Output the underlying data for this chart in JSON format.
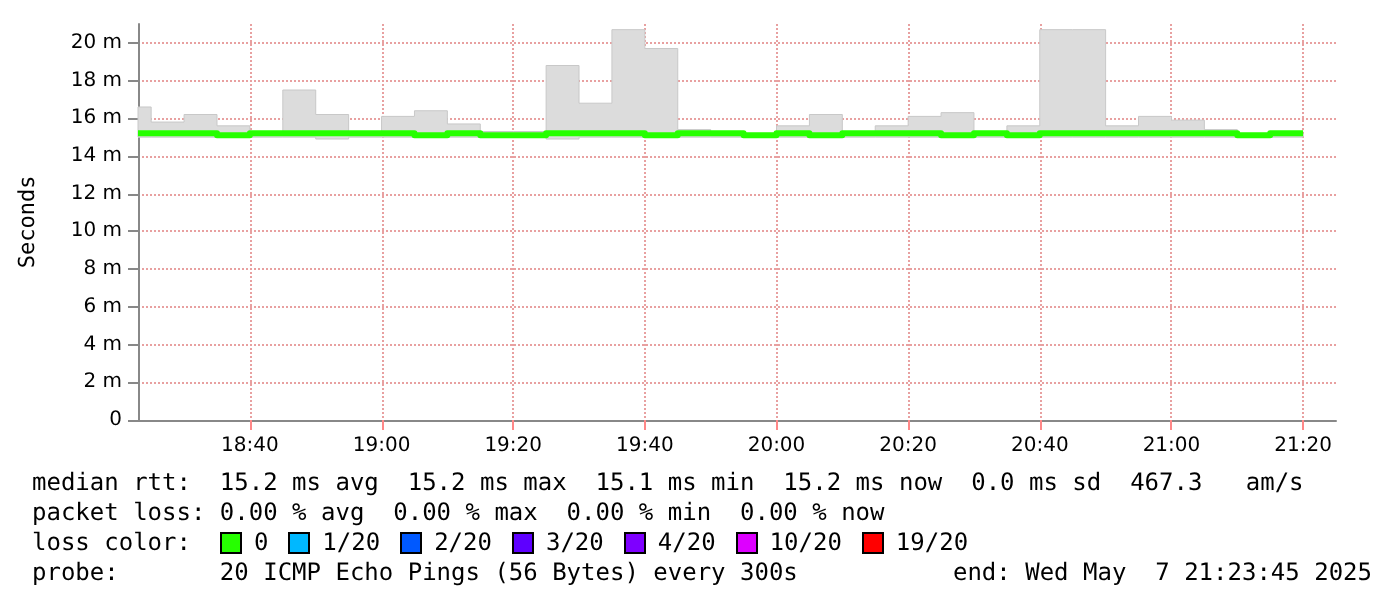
{
  "chart_data": {
    "type": "step",
    "ylabel": "Seconds",
    "x": [
      "2025-05-07T18:23",
      "2025-05-07T18:25",
      "2025-05-07T18:30",
      "2025-05-07T18:35",
      "2025-05-07T18:40",
      "2025-05-07T18:45",
      "2025-05-07T18:50",
      "2025-05-07T18:55",
      "2025-05-07T19:00",
      "2025-05-07T19:05",
      "2025-05-07T19:10",
      "2025-05-07T19:15",
      "2025-05-07T19:20",
      "2025-05-07T19:25",
      "2025-05-07T19:30",
      "2025-05-07T19:35",
      "2025-05-07T19:40",
      "2025-05-07T19:45",
      "2025-05-07T19:50",
      "2025-05-07T19:55",
      "2025-05-07T20:00",
      "2025-05-07T20:05",
      "2025-05-07T20:10",
      "2025-05-07T20:15",
      "2025-05-07T20:20",
      "2025-05-07T20:25",
      "2025-05-07T20:30",
      "2025-05-07T20:35",
      "2025-05-07T20:40",
      "2025-05-07T20:45",
      "2025-05-07T20:50",
      "2025-05-07T20:55",
      "2025-05-07T21:00",
      "2025-05-07T21:05",
      "2025-05-07T21:10",
      "2025-05-07T21:15",
      "2025-05-07T21:20"
    ],
    "series": [
      {
        "name": "0",
        "color": "#26ff00",
        "values": [
          15.2,
          15.2,
          15.2,
          15.1,
          15.2,
          15.2,
          15.2,
          15.2,
          15.2,
          15.1,
          15.2,
          15.1,
          15.1,
          15.2,
          15.2,
          15.2,
          15.1,
          15.2,
          15.2,
          15.1,
          15.2,
          15.1,
          15.2,
          15.2,
          15.2,
          15.1,
          15.2,
          15.1,
          15.2,
          15.2,
          15.2,
          15.2,
          15.2,
          15.2,
          15.1,
          15.2,
          15.2
        ],
        "lower": [
          15.0,
          15.0,
          15.0,
          15.0,
          15.0,
          15.0,
          14.9,
          15.0,
          15.0,
          15.0,
          15.0,
          15.0,
          15.0,
          14.9,
          15.0,
          15.0,
          15.0,
          15.0,
          15.0,
          15.0,
          15.0,
          15.0,
          15.0,
          15.0,
          15.0,
          15.0,
          15.0,
          15.0,
          15.0,
          15.0,
          15.0,
          15.0,
          15.0,
          15.0,
          15.0,
          15.0,
          15.0
        ],
        "upper": [
          16.6,
          15.8,
          16.2,
          15.6,
          15.2,
          17.5,
          16.2,
          15.2,
          16.1,
          16.4,
          15.7,
          15.3,
          15.3,
          18.8,
          16.8,
          20.7,
          19.7,
          15.4,
          15.2,
          15.2,
          15.6,
          16.2,
          15.2,
          15.6,
          16.1,
          16.3,
          15.2,
          15.6,
          20.7,
          20.7,
          15.6,
          16.1,
          15.9,
          15.4,
          15.2,
          15.2,
          15.2
        ]
      },
      {
        "name": "1/20",
        "color": "#00b8ff",
        "values": [
          null,
          null,
          null,
          null,
          null,
          null,
          null,
          null,
          null,
          null,
          null,
          null,
          null,
          null,
          null,
          null,
          null,
          null,
          null,
          null,
          null,
          null,
          null,
          null,
          null,
          null,
          null,
          null,
          null,
          null,
          null,
          null,
          null,
          null,
          null,
          null,
          null
        ]
      },
      {
        "name": "2/20",
        "color": "#0059ff",
        "values": [
          null,
          null,
          null,
          null,
          null,
          null,
          null,
          null,
          null,
          null,
          null,
          null,
          null,
          null,
          null,
          null,
          null,
          null,
          null,
          null,
          null,
          null,
          null,
          null,
          null,
          null,
          null,
          null,
          null,
          null,
          null,
          null,
          null,
          null,
          null,
          null,
          null
        ]
      },
      {
        "name": "3/20",
        "color": "#5e00ff",
        "values": [
          null,
          null,
          null,
          null,
          null,
          null,
          null,
          null,
          null,
          null,
          null,
          null,
          null,
          null,
          null,
          null,
          null,
          null,
          null,
          null,
          null,
          null,
          null,
          null,
          null,
          null,
          null,
          null,
          null,
          null,
          null,
          null,
          null,
          null,
          null,
          null,
          null
        ]
      },
      {
        "name": "4/20",
        "color": "#7e00ff",
        "values": [
          null,
          null,
          null,
          null,
          null,
          null,
          null,
          null,
          null,
          null,
          null,
          null,
          null,
          null,
          null,
          null,
          null,
          null,
          null,
          null,
          null,
          null,
          null,
          null,
          null,
          null,
          null,
          null,
          null,
          null,
          null,
          null,
          null,
          null,
          null,
          null,
          null
        ]
      },
      {
        "name": "10/20",
        "color": "#dd00ff",
        "values": [
          null,
          null,
          null,
          null,
          null,
          null,
          null,
          null,
          null,
          null,
          null,
          null,
          null,
          null,
          null,
          null,
          null,
          null,
          null,
          null,
          null,
          null,
          null,
          null,
          null,
          null,
          null,
          null,
          null,
          null,
          null,
          null,
          null,
          null,
          null,
          null,
          null
        ]
      },
      {
        "name": "19/20",
        "color": "#ff0000",
        "values": [
          null,
          null,
          null,
          null,
          null,
          null,
          null,
          null,
          null,
          null,
          null,
          null,
          null,
          null,
          null,
          null,
          null,
          null,
          null,
          null,
          null,
          null,
          null,
          null,
          null,
          null,
          null,
          null,
          null,
          null,
          null,
          null,
          null,
          null,
          null,
          null,
          null
        ]
      }
    ],
    "xlim": [
      "2025-05-07T18:23",
      "2025-05-07T21:25"
    ],
    "xticks": [
      {
        "value": "2025-05-07T18:40",
        "label": "18:40"
      },
      {
        "value": "2025-05-07T19:00",
        "label": "19:00"
      },
      {
        "value": "2025-05-07T19:20",
        "label": "19:20"
      },
      {
        "value": "2025-05-07T19:40",
        "label": "19:40"
      },
      {
        "value": "2025-05-07T20:00",
        "label": "20:00"
      },
      {
        "value": "2025-05-07T20:20",
        "label": "20:20"
      },
      {
        "value": "2025-05-07T20:40",
        "label": "20:40"
      },
      {
        "value": "2025-05-07T21:00",
        "label": "21:00"
      },
      {
        "value": "2025-05-07T21:20",
        "label": "21:20"
      }
    ],
    "ylim": [
      0,
      21
    ],
    "yticks": [
      0,
      {
        "value": 2,
        "label": "2 m"
      },
      {
        "value": 4,
        "label": "4 m"
      },
      {
        "value": 6,
        "label": "6 m"
      },
      {
        "value": 8,
        "label": "8 m"
      },
      {
        "value": 10,
        "label": "10 m"
      },
      {
        "value": 12,
        "label": "12 m"
      },
      {
        "value": 14,
        "label": "14 m"
      },
      {
        "value": 16,
        "label": "16 m"
      },
      {
        "value": 18,
        "label": "18 m"
      },
      {
        "value": 20,
        "label": "20 m"
      }
    ],
    "grid": true,
    "legend": "bottom",
    "legend_title": "loss color:",
    "line_style": "solid",
    "marker": "none",
    "annotations": [
      "median rtt:  15.2 ms avg  15.2 ms max  15.1 ms min  15.2 ms now  0.0 ms sd  467.3   am/s",
      "packet loss: 0.00 % avg  0.00 % max  0.00 % min  0.00 % now",
      "probe:       20 ICMP Echo Pings (56 Bytes) every 300s",
      "end: Wed May  7 21:23:45 2025"
    ]
  }
}
